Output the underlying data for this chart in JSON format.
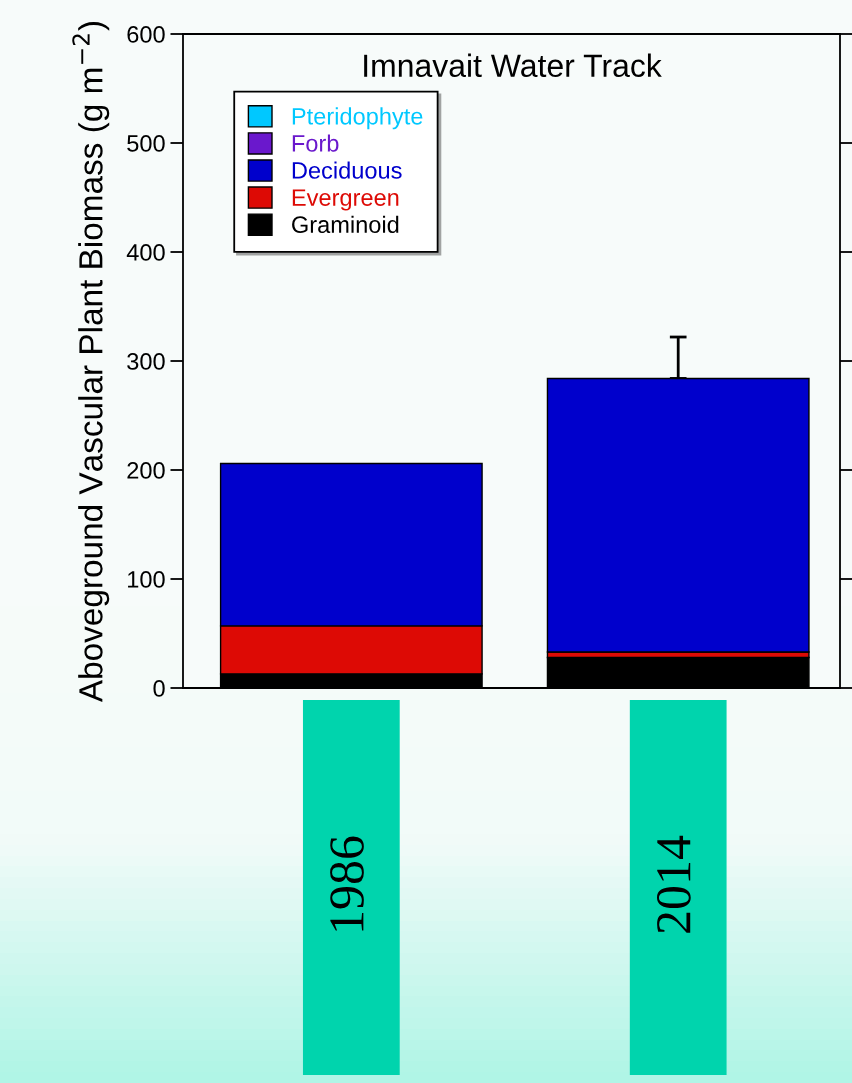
{
  "chart_data": {
    "type": "bar",
    "stacked": true,
    "title": "Imnavait Water Track",
    "ylabel": "Aboveground Vascular Plant Biomass (g m$^{−2}$)",
    "categories": [
      "1986",
      "2014"
    ],
    "series": [
      {
        "name": "Graminoid",
        "color": "#000000",
        "values": [
          13,
          28
        ]
      },
      {
        "name": "Evergreen",
        "color": "#dd0a05",
        "values": [
          44,
          5
        ]
      },
      {
        "name": "Deciduous",
        "color": "#0000cc",
        "values": [
          149,
          251
        ],
        "errors": [
          null,
          [
            284,
            322
          ]
        ]
      },
      {
        "name": "Forb",
        "color": "#6a18cc",
        "values": [
          0,
          0
        ]
      },
      {
        "name": "Pteridophyte",
        "color": "#00c8ff",
        "values": [
          0,
          0
        ]
      }
    ],
    "ylim": [
      0,
      600
    ],
    "yticks": [
      0,
      100,
      200,
      300,
      400,
      500,
      600
    ],
    "grid": false,
    "legend": "top left"
  }
}
